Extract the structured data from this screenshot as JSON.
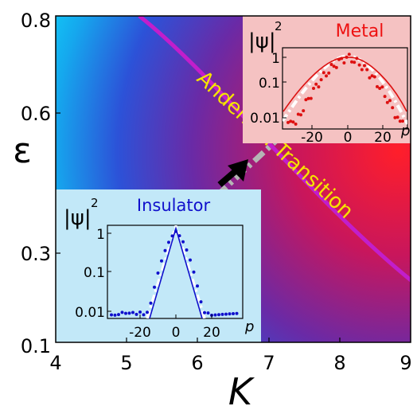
{
  "axes": {
    "xlabel": "K",
    "ylabel": "ε",
    "x_ticks": [
      "4",
      "5",
      "6",
      "7",
      "8",
      "9"
    ],
    "y_ticks": [
      "0.8",
      "0.6",
      "0.3",
      "0.1"
    ]
  },
  "transition_label": "Anderson Transition",
  "colors": {
    "transition_curve": "#c21ecb",
    "transition_text": "#f5e400",
    "metal_title": "#ee1111",
    "insulator_title": "#1010cc",
    "path_arrow": "#b5b5b5"
  },
  "insets": {
    "metal": {
      "title": "Metal",
      "ylabel_base": "|ψ|",
      "ylabel_exp": "2",
      "xlabel": "p",
      "y_ticks": [
        "1",
        "0.1",
        "0.01"
      ],
      "x_ticks": [
        "-20",
        "0",
        "20"
      ]
    },
    "insulator": {
      "title": "Insulator",
      "ylabel_base": "|ψ|",
      "ylabel_exp": "2",
      "xlabel": "p",
      "y_ticks": [
        "1",
        "0.1",
        "0.01"
      ],
      "x_ticks": [
        "-20",
        "0",
        "20"
      ]
    }
  }
}
